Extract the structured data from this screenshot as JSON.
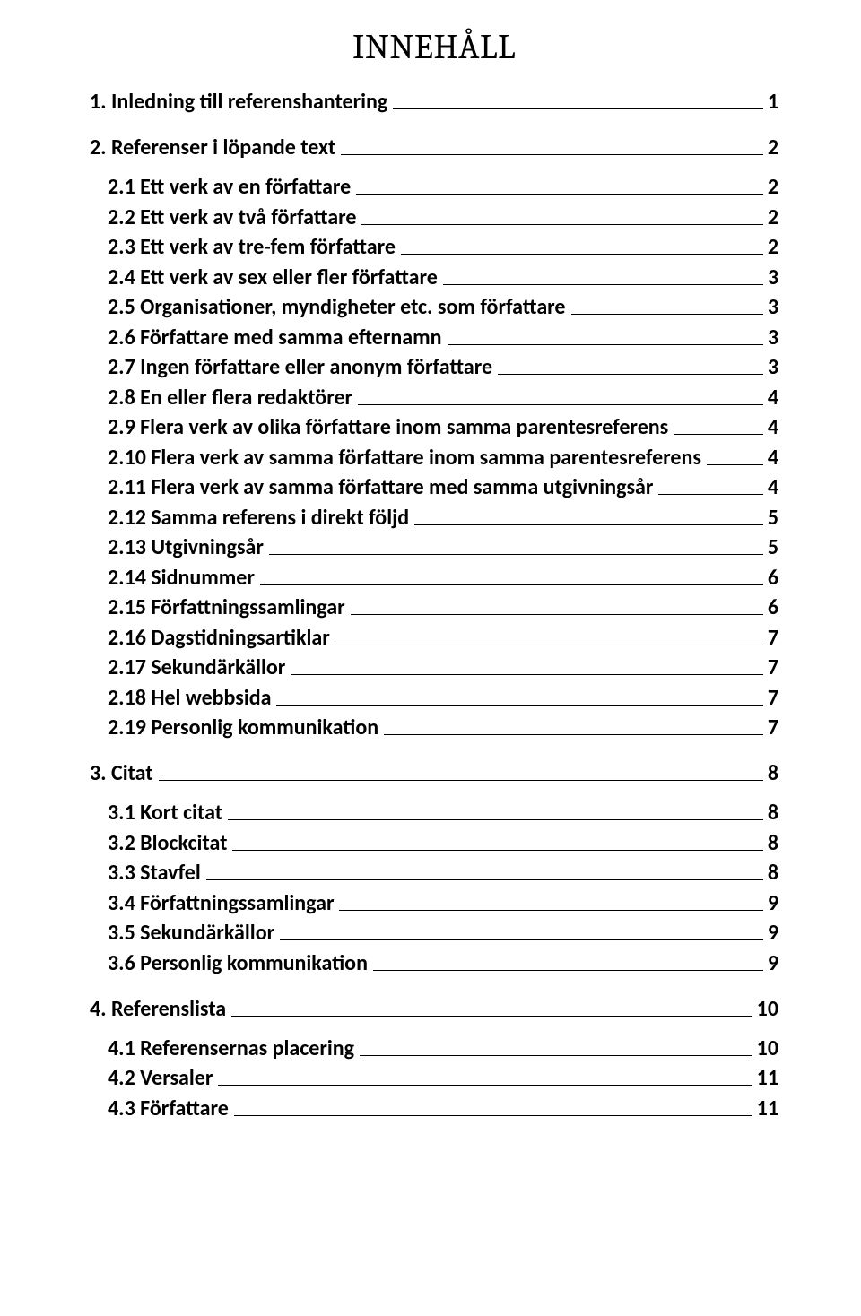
{
  "title": "INNEHÅLL",
  "toc": [
    {
      "level": 1,
      "label": "1. Inledning till referenshantering",
      "page": "1"
    },
    {
      "level": 1,
      "label": "2. Referenser i löpande text",
      "page": "2"
    },
    {
      "level": 2,
      "label": "2.1 Ett verk av en författare",
      "page": "2"
    },
    {
      "level": 2,
      "label": "2.2 Ett verk av två författare",
      "page": "2"
    },
    {
      "level": 2,
      "label": "2.3 Ett verk av tre-fem författare",
      "page": "2"
    },
    {
      "level": 2,
      "label": "2.4 Ett verk av sex eller fler författare",
      "page": "3"
    },
    {
      "level": 2,
      "label": "2.5 Organisationer, myndigheter etc. som författare",
      "page": "3"
    },
    {
      "level": 2,
      "label": "2.6 Författare med samma efternamn",
      "page": "3"
    },
    {
      "level": 2,
      "label": "2.7 Ingen författare eller anonym författare",
      "page": "3"
    },
    {
      "level": 2,
      "label": "2.8 En eller flera redaktörer",
      "page": "4"
    },
    {
      "level": 2,
      "label": "2.9 Flera verk av olika författare inom samma parentesreferens",
      "page": "4"
    },
    {
      "level": 2,
      "label": "2.10 Flera verk av samma författare inom samma parentesreferens",
      "page": "4"
    },
    {
      "level": 2,
      "label": "2.11 Flera verk av samma författare med samma utgivningsår",
      "page": "4"
    },
    {
      "level": 2,
      "label": "2.12 Samma referens i direkt följd",
      "page": "5"
    },
    {
      "level": 2,
      "label": "2.13 Utgivningsår",
      "page": "5"
    },
    {
      "level": 2,
      "label": "2.14 Sidnummer",
      "page": "6"
    },
    {
      "level": 2,
      "label": "2.15 Författningssamlingar",
      "page": "6"
    },
    {
      "level": 2,
      "label": "2.16 Dagstidningsartiklar",
      "page": "7"
    },
    {
      "level": 2,
      "label": "2.17 Sekundärkällor",
      "page": "7"
    },
    {
      "level": 2,
      "label": "2.18 Hel webbsida",
      "page": "7"
    },
    {
      "level": 2,
      "label": "2.19 Personlig kommunikation",
      "page": "7"
    },
    {
      "level": 1,
      "label": "3. Citat",
      "page": "8"
    },
    {
      "level": 2,
      "label": "3.1 Kort citat",
      "page": "8"
    },
    {
      "level": 2,
      "label": "3.2 Blockcitat",
      "page": "8"
    },
    {
      "level": 2,
      "label": "3.3 Stavfel",
      "page": "8"
    },
    {
      "level": 2,
      "label": "3.4 Författningssamlingar",
      "page": "9"
    },
    {
      "level": 2,
      "label": "3.5 Sekundärkällor",
      "page": "9"
    },
    {
      "level": 2,
      "label": "3.6 Personlig kommunikation",
      "page": "9"
    },
    {
      "level": 1,
      "label": "4. Referenslista",
      "page": "10"
    },
    {
      "level": 2,
      "label": "4.1 Referensernas placering",
      "page": "10"
    },
    {
      "level": 2,
      "label": "4.2 Versaler",
      "page": "11"
    },
    {
      "level": 2,
      "label": "4.3 Författare",
      "page": "11"
    }
  ]
}
